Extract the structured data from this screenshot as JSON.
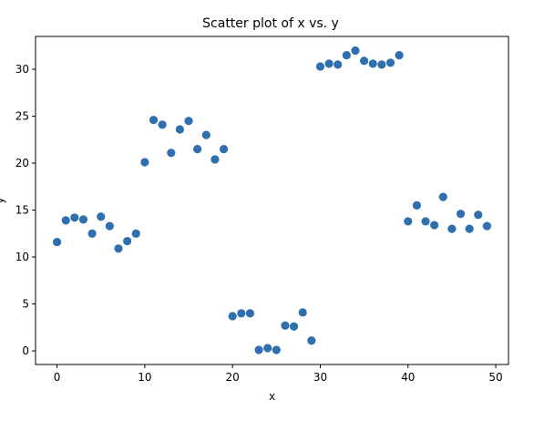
{
  "chart_data": {
    "type": "scatter",
    "title": "Scatter plot of x vs. y",
    "xlabel": "x",
    "ylabel": "y",
    "xlim": [
      -2.45,
      51.45
    ],
    "ylim": [
      -1.45,
      33.5
    ],
    "xticks": [
      0,
      10,
      20,
      30,
      40,
      50
    ],
    "yticks": [
      0,
      5,
      10,
      15,
      20,
      25,
      30
    ],
    "grid": false,
    "legend": "none",
    "marker_color": "#2f6fad",
    "series": [
      {
        "points": [
          [
            0,
            11.6
          ],
          [
            1,
            13.9
          ],
          [
            2,
            14.2
          ],
          [
            3,
            14.0
          ],
          [
            4,
            12.5
          ],
          [
            5,
            14.3
          ],
          [
            6,
            13.3
          ],
          [
            7,
            10.9
          ],
          [
            8,
            11.7
          ],
          [
            9,
            12.5
          ],
          [
            10,
            20.1
          ],
          [
            11,
            24.6
          ],
          [
            12,
            24.1
          ],
          [
            13,
            21.1
          ],
          [
            14,
            23.6
          ],
          [
            15,
            24.5
          ],
          [
            16,
            21.5
          ],
          [
            17,
            23.0
          ],
          [
            18,
            20.4
          ],
          [
            19,
            21.5
          ],
          [
            20,
            3.7
          ],
          [
            21,
            4.0
          ],
          [
            22,
            4.0
          ],
          [
            23,
            0.1
          ],
          [
            24,
            0.3
          ],
          [
            25,
            0.1
          ],
          [
            26,
            2.7
          ],
          [
            27,
            2.6
          ],
          [
            28,
            4.1
          ],
          [
            29,
            1.1
          ],
          [
            30,
            30.3
          ],
          [
            31,
            30.6
          ],
          [
            32,
            30.5
          ],
          [
            33,
            31.5
          ],
          [
            34,
            32.0
          ],
          [
            35,
            30.9
          ],
          [
            36,
            30.6
          ],
          [
            37,
            30.5
          ],
          [
            38,
            30.7
          ],
          [
            39,
            31.5
          ],
          [
            40,
            13.8
          ],
          [
            41,
            15.5
          ],
          [
            42,
            13.8
          ],
          [
            43,
            13.4
          ],
          [
            44,
            16.4
          ],
          [
            45,
            13.0
          ],
          [
            46,
            14.6
          ],
          [
            47,
            13.0
          ],
          [
            48,
            14.5
          ],
          [
            49,
            13.3
          ]
        ]
      }
    ]
  }
}
